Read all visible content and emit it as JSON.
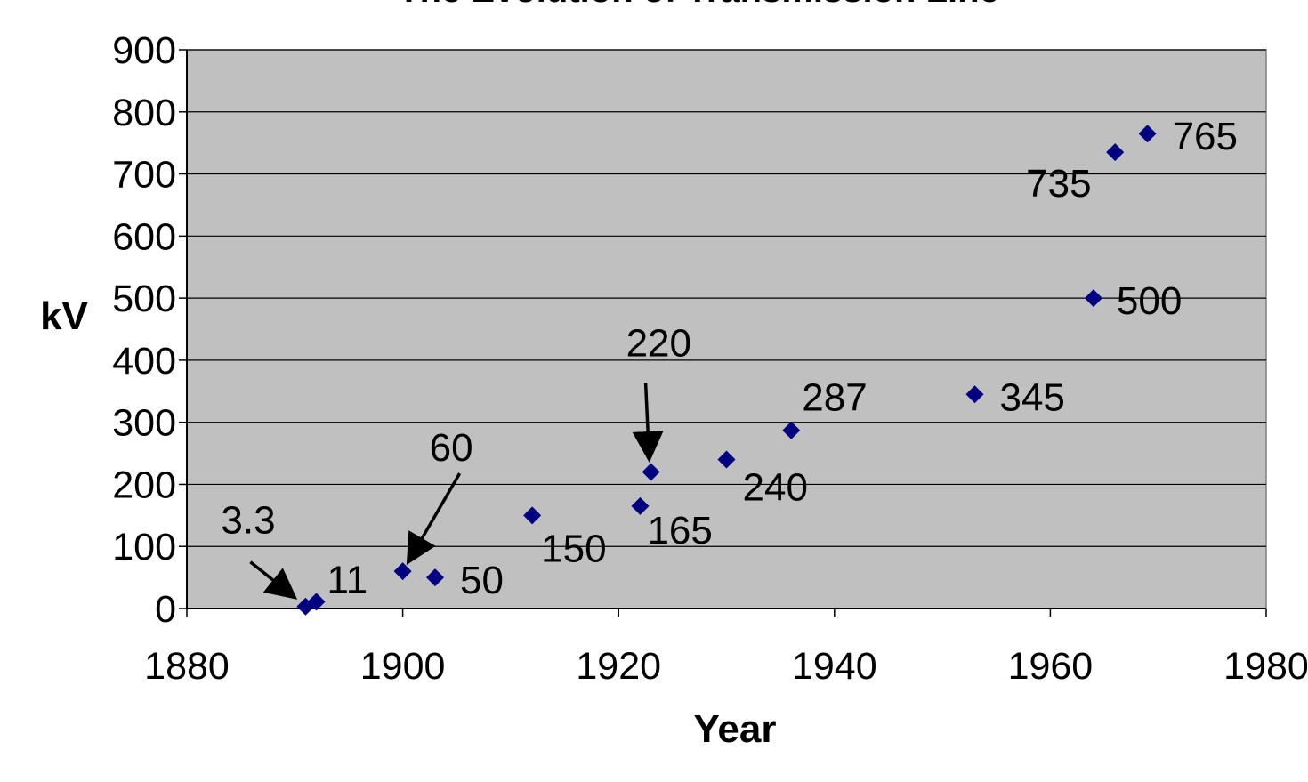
{
  "chart_data": {
    "type": "scatter",
    "title": "The Evolution of Transmission Line",
    "xlabel": "Year",
    "ylabel": "kV",
    "xlim": [
      1880,
      1980
    ],
    "ylim": [
      0,
      900
    ],
    "x_ticks": [
      "1880",
      "1900",
      "1920",
      "1940",
      "1960",
      "1980"
    ],
    "y_ticks": [
      "0",
      "100",
      "200",
      "300",
      "400",
      "500",
      "600",
      "700",
      "800",
      "900"
    ],
    "grid": "horizontal",
    "legend": "none",
    "colors": {
      "plot_background": "#c0c0c0",
      "marker": "#000080",
      "gridline": "#000000",
      "page_background": "#ffffff"
    },
    "series": [
      {
        "x": [
          1891,
          1892,
          1900,
          1903,
          1912,
          1922,
          1923,
          1930,
          1936,
          1953,
          1964,
          1966,
          1969
        ],
        "y": [
          3.3,
          11,
          60,
          50,
          150,
          165,
          220,
          240,
          287,
          345,
          500,
          735,
          765
        ]
      }
    ],
    "data_labels": [
      "3.3",
      "11",
      "60",
      "50",
      "150",
      "165",
      "220",
      "240",
      "287",
      "345",
      "500",
      "735",
      "765"
    ]
  }
}
